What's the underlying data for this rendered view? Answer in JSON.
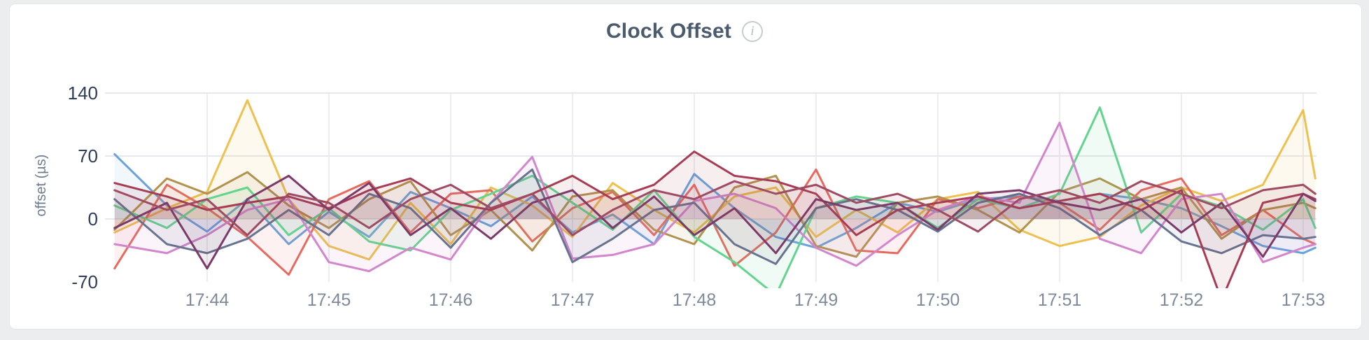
{
  "page": {
    "background_color": "#ecedef",
    "card_background": "#ffffff"
  },
  "header": {
    "info_icon_glyph": "i"
  },
  "chart_data": {
    "type": "line",
    "title": "Clock Offset",
    "xlabel": "",
    "ylabel": "offset (µs)",
    "ylim": [
      -70,
      140
    ],
    "grid": true,
    "legend": "none",
    "y_ticks": [
      140,
      70,
      0,
      -70
    ],
    "x_ticks": [
      {
        "minute": 44,
        "label": "17:44"
      },
      {
        "minute": 45,
        "label": "17:45"
      },
      {
        "minute": 46,
        "label": "17:46"
      },
      {
        "minute": 47,
        "label": "17:47"
      },
      {
        "minute": 48,
        "label": "17:48"
      },
      {
        "minute": 49,
        "label": "17:49"
      },
      {
        "minute": 50,
        "label": "17:50"
      },
      {
        "minute": 51,
        "label": "17:51"
      },
      {
        "minute": 52,
        "label": "17:52"
      },
      {
        "minute": 53,
        "label": "17:53"
      }
    ],
    "x_minutes": [
      43.24,
      43.67,
      44.0,
      44.33,
      44.67,
      45.0,
      45.33,
      45.67,
      46.0,
      46.33,
      46.67,
      47.0,
      47.33,
      47.67,
      48.0,
      48.33,
      48.67,
      49.0,
      49.33,
      49.67,
      50.0,
      50.33,
      50.67,
      51.0,
      51.33,
      51.67,
      52.0,
      52.33,
      52.67,
      53.0,
      53.1
    ],
    "series": [
      {
        "name": "series-blue",
        "color": "#6AA3DB",
        "values": [
          72,
          15,
          -14,
          22,
          -28,
          8,
          -20,
          30,
          12,
          -8,
          25,
          -15,
          5,
          -28,
          50,
          12,
          -20,
          -32,
          -10,
          18,
          8,
          22,
          25,
          20,
          28,
          22,
          12,
          -8,
          -30,
          -38,
          -32
        ]
      },
      {
        "name": "series-gold",
        "color": "#EDC04F",
        "values": [
          -15,
          12,
          30,
          132,
          22,
          -30,
          -45,
          18,
          -28,
          35,
          15,
          -20,
          40,
          10,
          -15,
          25,
          35,
          -20,
          10,
          -15,
          22,
          30,
          -12,
          -30,
          -20,
          15,
          35,
          20,
          38,
          121,
          45
        ]
      },
      {
        "name": "series-salmon",
        "color": "#E56B60",
        "values": [
          -55,
          38,
          12,
          -20,
          -62,
          22,
          42,
          -15,
          28,
          32,
          -25,
          12,
          30,
          -18,
          38,
          -52,
          -15,
          55,
          -35,
          -38,
          22,
          12,
          25,
          18,
          -12,
          32,
          45,
          -18,
          10,
          -22,
          -28
        ]
      },
      {
        "name": "series-khaki",
        "color": "#B2924E",
        "values": [
          -12,
          45,
          28,
          52,
          15,
          -10,
          22,
          42,
          -18,
          10,
          -35,
          25,
          32,
          -12,
          -28,
          35,
          48,
          -30,
          -42,
          18,
          25,
          10,
          -15,
          30,
          45,
          22,
          35,
          -22,
          10,
          18,
          12
        ]
      },
      {
        "name": "series-green",
        "color": "#63D48E",
        "values": [
          15,
          -10,
          22,
          35,
          -18,
          12,
          -25,
          -35,
          10,
          28,
          48,
          18,
          -12,
          32,
          -20,
          -48,
          -85,
          12,
          25,
          18,
          -10,
          22,
          12,
          28,
          124,
          -15,
          28,
          14,
          -12,
          22,
          -10
        ]
      },
      {
        "name": "series-orchid",
        "color": "#D286CC",
        "values": [
          -28,
          -38,
          -18,
          10,
          22,
          -48,
          -58,
          -32,
          -45,
          18,
          69,
          -44,
          -40,
          -28,
          20,
          28,
          12,
          -32,
          -52,
          -18,
          10,
          25,
          18,
          107,
          -22,
          -38,
          22,
          28,
          -48,
          -32,
          -28
        ]
      },
      {
        "name": "series-slate",
        "color": "#68748F",
        "values": [
          22,
          -28,
          -38,
          -22,
          10,
          -18,
          28,
          12,
          -32,
          18,
          55,
          -48,
          -22,
          10,
          18,
          -28,
          -50,
          12,
          22,
          10,
          -14,
          18,
          28,
          12,
          -18,
          10,
          -25,
          -38,
          -18,
          -22,
          -20
        ]
      },
      {
        "name": "series-maroon",
        "color": "#A63D55",
        "values": [
          40,
          25,
          10,
          18,
          25,
          12,
          32,
          45,
          18,
          10,
          28,
          48,
          22,
          38,
          75,
          48,
          42,
          28,
          -18,
          10,
          18,
          25,
          12,
          20,
          28,
          10,
          32,
          -90,
          18,
          28,
          22
        ]
      },
      {
        "name": "series-plum",
        "color": "#7C3A68",
        "values": [
          -10,
          18,
          -55,
          22,
          48,
          10,
          40,
          -18,
          12,
          -22,
          18,
          32,
          -10,
          25,
          -18,
          12,
          -38,
          22,
          10,
          18,
          -12,
          28,
          32,
          18,
          10,
          22,
          -15,
          18,
          -42,
          28,
          20
        ]
      },
      {
        "name": "series-crimson",
        "color": "#9E4B63",
        "values": [
          32,
          10,
          22,
          -18,
          28,
          18,
          -10,
          22,
          38,
          12,
          28,
          -18,
          10,
          32,
          22,
          42,
          28,
          38,
          18,
          28,
          10,
          -14,
          22,
          32,
          18,
          42,
          28,
          12,
          32,
          38,
          28
        ]
      }
    ]
  }
}
